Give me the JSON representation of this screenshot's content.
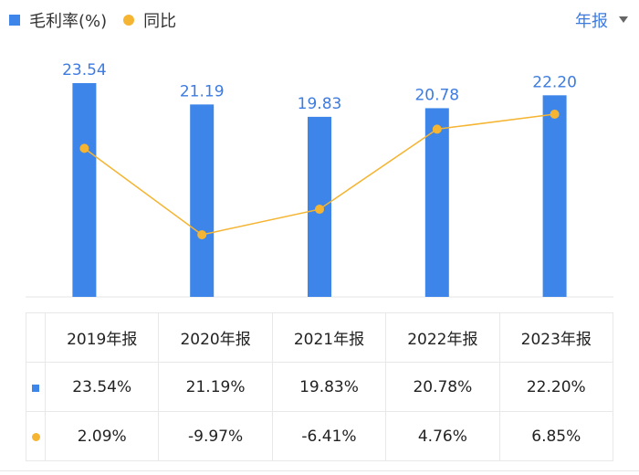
{
  "legend": {
    "bar_label": "毛利率(%)",
    "line_label": "同比"
  },
  "period_selector": {
    "label": "年报"
  },
  "chart_data": {
    "type": "bar+line",
    "categories": [
      "2019年报",
      "2020年报",
      "2021年报",
      "2022年报",
      "2023年报"
    ],
    "series": [
      {
        "name": "毛利率(%)",
        "type": "bar",
        "values": [
          23.54,
          21.19,
          19.83,
          20.78,
          22.2
        ],
        "labels": [
          "23.54",
          "21.19",
          "19.83",
          "20.78",
          "22.20"
        ],
        "color": "#3d85e8"
      },
      {
        "name": "同比",
        "type": "line",
        "values": [
          2.09,
          -9.97,
          -6.41,
          4.76,
          6.85
        ],
        "color": "#f5b431"
      }
    ],
    "bar_ylim": [
      0,
      23.54
    ],
    "line_ylim": [
      -9.97,
      6.85
    ]
  },
  "table": {
    "headers": [
      "2019年报",
      "2020年报",
      "2021年报",
      "2022年报",
      "2023年报"
    ],
    "rows": [
      {
        "marker": "bar",
        "values": [
          "23.54%",
          "21.19%",
          "19.83%",
          "20.78%",
          "22.20%"
        ]
      },
      {
        "marker": "line",
        "values": [
          "2.09%",
          "-9.97%",
          "-6.41%",
          "4.76%",
          "6.85%"
        ]
      }
    ]
  },
  "colors": {
    "bar": "#3d85e8",
    "line": "#f5b431",
    "positive": "#e84a4a",
    "negative": "#1e9d6e",
    "accent": "#3d7be0"
  }
}
